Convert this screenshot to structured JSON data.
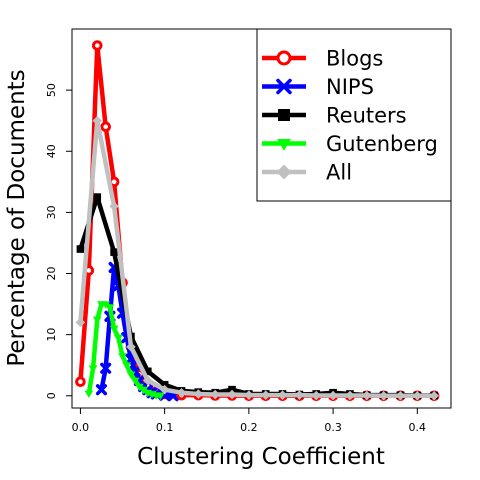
{
  "chart_data": {
    "type": "line",
    "title": "",
    "xlabel": "Clustering Coefficient",
    "ylabel": "Percentage of Documents",
    "xlim": [
      -0.01,
      0.44
    ],
    "ylim": [
      -2,
      60
    ],
    "xticks": [
      "0.0",
      "0.1",
      "0.2",
      "0.3",
      "0.4"
    ],
    "yticks": [
      "0",
      "10",
      "20",
      "30",
      "40",
      "50"
    ],
    "grid": false,
    "legend_position": "top-right",
    "series": [
      {
        "name": "Blogs",
        "color": "#ff0000",
        "marker": "circle",
        "x": [
          0.0,
          0.01,
          0.02,
          0.03,
          0.04,
          0.05,
          0.06,
          0.07,
          0.08,
          0.09,
          0.1,
          0.12,
          0.14,
          0.16,
          0.18,
          0.2,
          0.22,
          0.24,
          0.26,
          0.28,
          0.3,
          0.32,
          0.34,
          0.36,
          0.38,
          0.4,
          0.42
        ],
        "y": [
          2.3,
          20.5,
          57.3,
          44.0,
          35.0,
          18.5,
          8.0,
          3.5,
          1.5,
          0.7,
          0.3,
          0.1,
          0.1,
          0.05,
          0.05,
          0.0,
          0.0,
          0.0,
          0.0,
          0.0,
          0.0,
          0.0,
          0.0,
          0.0,
          0.0,
          0.0,
          0.0
        ]
      },
      {
        "name": "NIPS",
        "color": "#0000ff",
        "marker": "x",
        "x": [
          0.025,
          0.03,
          0.035,
          0.04,
          0.045,
          0.05,
          0.055,
          0.06,
          0.065,
          0.07,
          0.075,
          0.08,
          0.085,
          0.09,
          0.1,
          0.11
        ],
        "y": [
          1.0,
          4.5,
          13.0,
          21.0,
          18.0,
          13.5,
          9.5,
          6.0,
          4.0,
          2.5,
          1.5,
          1.0,
          0.5,
          0.3,
          0.1,
          0.0
        ]
      },
      {
        "name": "Reuters",
        "color": "#000000",
        "marker": "square",
        "x": [
          0.0,
          0.02,
          0.04,
          0.06,
          0.08,
          0.1,
          0.12,
          0.14,
          0.16,
          0.18,
          0.2,
          0.22,
          0.24,
          0.26,
          0.28,
          0.3,
          0.32,
          0.34,
          0.36,
          0.38,
          0.4,
          0.42
        ],
        "y": [
          24.0,
          32.5,
          23.5,
          9.7,
          4.0,
          1.8,
          0.8,
          0.6,
          0.5,
          1.0,
          0.3,
          0.3,
          0.3,
          0.2,
          0.3,
          0.5,
          0.3,
          0.1,
          0.1,
          0.1,
          0.05,
          0.05
        ]
      },
      {
        "name": "Gutenberg",
        "color": "#00ff00",
        "marker": "triangle-down",
        "x": [
          0.01,
          0.015,
          0.02,
          0.025,
          0.03,
          0.035,
          0.04,
          0.045,
          0.05,
          0.055,
          0.06,
          0.065,
          0.07,
          0.075,
          0.08,
          0.085,
          0.09,
          0.095
        ],
        "y": [
          0.4,
          4.5,
          12.5,
          15.0,
          15.0,
          14.5,
          11.0,
          9.5,
          6.5,
          5.0,
          3.5,
          2.5,
          1.5,
          1.0,
          0.5,
          0.3,
          0.1,
          0.05
        ]
      },
      {
        "name": "All",
        "color": "#c0c0c0",
        "marker": "diamond",
        "x": [
          0.0,
          0.02,
          0.04,
          0.06,
          0.08,
          0.1,
          0.12,
          0.14,
          0.16,
          0.18,
          0.2,
          0.22,
          0.24,
          0.26,
          0.28,
          0.3,
          0.32,
          0.34,
          0.36,
          0.38,
          0.4,
          0.42
        ],
        "y": [
          12.0,
          45.0,
          31.0,
          8.0,
          2.5,
          1.0,
          0.5,
          0.3,
          0.2,
          0.2,
          0.1,
          0.1,
          0.1,
          0.1,
          0.05,
          0.05,
          0.05,
          0.05,
          0.0,
          0.0,
          0.0,
          0.0
        ]
      }
    ]
  }
}
